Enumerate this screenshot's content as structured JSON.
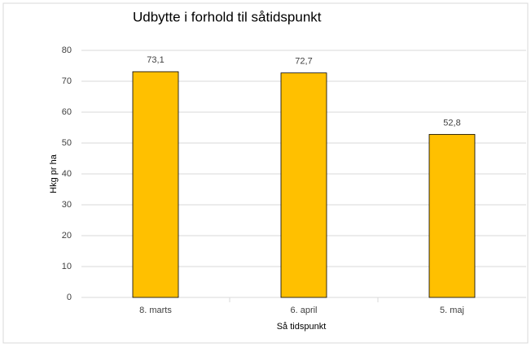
{
  "chart_data": {
    "type": "bar",
    "title": "Udbytte i forhold til såtidspunkt",
    "categories": [
      "8. marts",
      "6. april",
      "5. maj"
    ],
    "values": [
      73.1,
      72.7,
      52.8
    ],
    "value_labels": [
      "73,1",
      "72,7",
      "52,8"
    ],
    "color": "#ffc000",
    "xlabel": "Så tidspunkt",
    "ylabel": "Hkg pr ha",
    "ylim": [
      0,
      80
    ],
    "yticks": [
      0,
      10,
      20,
      30,
      40,
      50,
      60,
      70,
      80
    ],
    "grid": true
  }
}
